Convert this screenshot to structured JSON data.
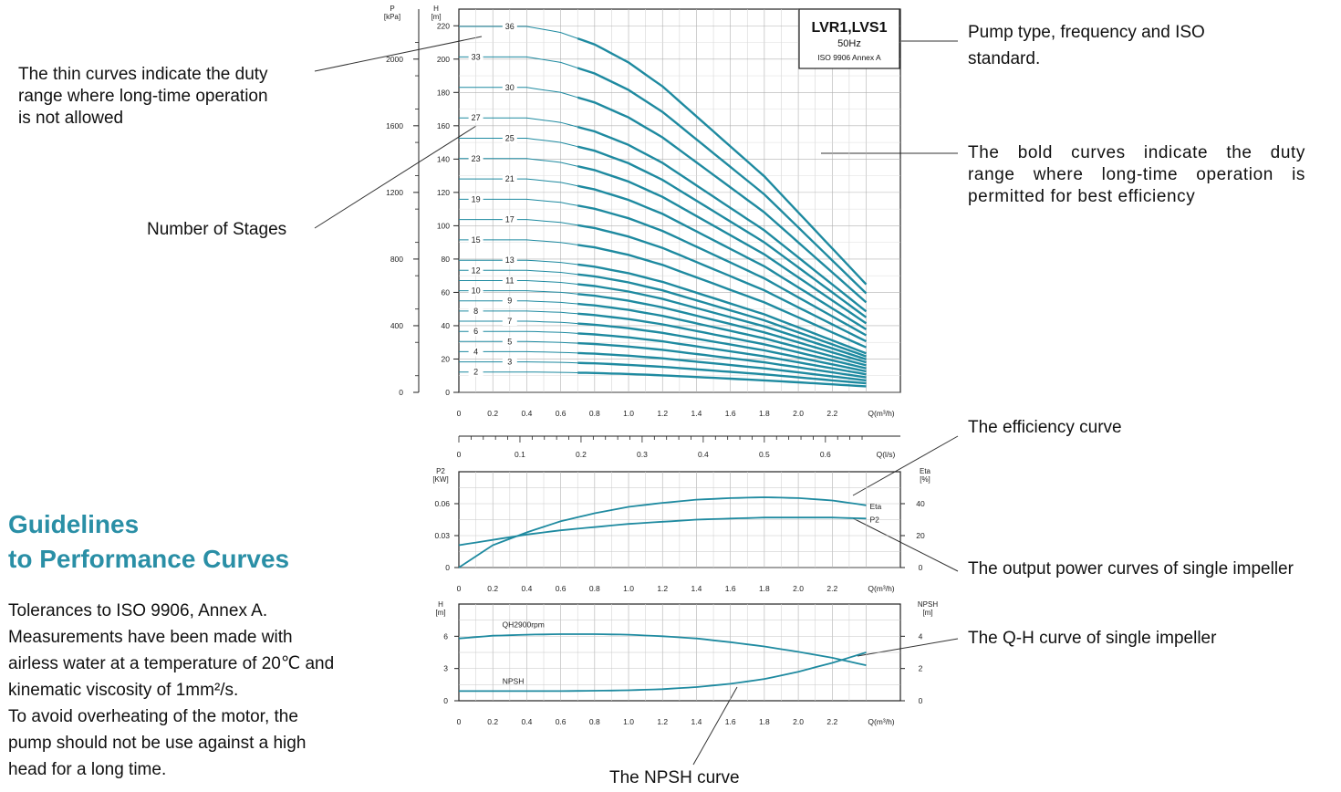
{
  "annotations": {
    "thin_curves": [
      "The thin curves indicate the duty",
      "range where long-time operation",
      "is not allowed"
    ],
    "stages": "Number of Stages",
    "pump_type": [
      "Pump type, frequency and ISO",
      "standard."
    ],
    "bold_curves": [
      "The bold curves indicate the duty",
      "range where long-time operation is",
      "permitted for best efficiency"
    ],
    "efficiency": "The efficiency curve",
    "output_power": "The output power curves of single impeller",
    "qh": "The Q-H curve of single impeller",
    "npsh": "The NPSH curve"
  },
  "guidelines": {
    "title": [
      "Guidelines",
      "to Performance Curves"
    ],
    "body": [
      "Tolerances to ISO 9906, Annex A.",
      "Measurements have been made with",
      "airless water at a temperature of 20℃  and",
      "kinematic viscosity of 1mm²/s.",
      "To avoid overheating of the motor, the",
      "pump should not be use against a high",
      "head for a long time."
    ]
  },
  "legend_box": {
    "model": "LVR1,LVS1",
    "frequency": "50Hz",
    "standard": "ISO 9906 Annex A"
  },
  "colors": {
    "curve": "#1e8aa0",
    "grid": "#b8b8b8",
    "frame": "#222222",
    "title": "#2a8fa6"
  },
  "chart_data": [
    {
      "type": "line",
      "ylabel": "H\n[m]",
      "ylabel_secondary": "P\n[kPa]",
      "xlabel": "Q(m³/h)",
      "xlim": [
        0,
        2.4
      ],
      "ylim": [
        0,
        230
      ],
      "ylim_secondary": [
        0,
        2300
      ],
      "x_ticks": [
        "0",
        "0.2",
        "0.4",
        "0.6",
        "0.8",
        "1.0",
        "1.2",
        "1.4",
        "1.6",
        "1.8",
        "2.0",
        "2.2",
        "Q(m³/h)"
      ],
      "y_ticks": [
        "0",
        "20",
        "40",
        "60",
        "80",
        "100",
        "120",
        "140",
        "160",
        "180",
        "200",
        "220"
      ],
      "y_ticks_secondary": [
        "0",
        "400",
        "800",
        "1200",
        "1600",
        "2000"
      ],
      "grid": true,
      "head_per_stage": [
        6.1,
        6.1,
        6.1,
        6.0,
        5.8,
        5.5,
        5.1,
        4.6,
        4.1,
        3.6,
        3.0,
        2.4,
        1.8
      ],
      "stages": [
        2,
        3,
        4,
        5,
        6,
        7,
        8,
        9,
        10,
        11,
        12,
        13,
        15,
        17,
        19,
        21,
        23,
        25,
        27,
        30,
        33,
        36
      ],
      "label_q": [
        0.1,
        0.3,
        0.1,
        0.3,
        0.1,
        0.3,
        0.1,
        0.3,
        0.1,
        0.3,
        0.1,
        0.3,
        0.1,
        0.3,
        0.1,
        0.3,
        0.1,
        0.3,
        0.1,
        0.3,
        0.1,
        0.3
      ],
      "bold_range": [
        0.7,
        2.4
      ]
    },
    {
      "type": "line",
      "xlim_secondary": [
        0,
        0.67
      ],
      "x_ticks_secondary": [
        "0",
        "0.1",
        "0.2",
        "0.3",
        "0.4",
        "0.5",
        "0.6",
        "Q(l/s)"
      ],
      "xlim": [
        0,
        2.4
      ],
      "x_ticks": [
        "0",
        "0.2",
        "0.4",
        "0.6",
        "0.8",
        "1.0",
        "1.2",
        "1.4",
        "1.6",
        "1.8",
        "2.0",
        "2.2",
        "Q(m³/h)"
      ],
      "ylabel": "P2\n[KW]",
      "ylabel_secondary": "Eta\n[%]",
      "ylim": [
        0,
        0.09
      ],
      "ylim_secondary": [
        0,
        60
      ],
      "y_ticks": [
        "0",
        "0.03",
        "0.06"
      ],
      "y_ticks_secondary": [
        "0",
        "20",
        "40"
      ],
      "grid": true,
      "x": [
        0,
        0.2,
        0.4,
        0.6,
        0.8,
        1.0,
        1.2,
        1.4,
        1.6,
        1.8,
        2.0,
        2.2,
        2.4
      ],
      "series": [
        {
          "name": "Eta",
          "axis": "secondary",
          "values": [
            0,
            14,
            22,
            29,
            34,
            38,
            40.5,
            42.5,
            43.5,
            44,
            43.5,
            42,
            39
          ]
        },
        {
          "name": "P2",
          "axis": "primary",
          "values": [
            0.021,
            0.026,
            0.031,
            0.035,
            0.038,
            0.041,
            0.043,
            0.045,
            0.046,
            0.047,
            0.047,
            0.047,
            0.046
          ]
        }
      ]
    },
    {
      "type": "line",
      "xlim": [
        0,
        2.4
      ],
      "x_ticks": [
        "0",
        "0.2",
        "0.4",
        "0.6",
        "0.8",
        "1.0",
        "1.2",
        "1.4",
        "1.6",
        "1.8",
        "2.0",
        "2.2",
        "Q(m³/h)"
      ],
      "ylabel": "H\n[m]",
      "ylabel_secondary": "NPSH\n[m]",
      "ylim": [
        0,
        9
      ],
      "ylim_secondary": [
        0,
        6
      ],
      "y_ticks": [
        "0",
        "3",
        "6"
      ],
      "y_ticks_secondary": [
        "0",
        "2",
        "4"
      ],
      "grid": true,
      "x": [
        0,
        0.2,
        0.4,
        0.6,
        0.8,
        1.0,
        1.2,
        1.4,
        1.6,
        1.8,
        2.0,
        2.2,
        2.4
      ],
      "series": [
        {
          "name": "QH2900rpm",
          "axis": "primary",
          "values": [
            5.8,
            6.05,
            6.15,
            6.2,
            6.2,
            6.15,
            6.0,
            5.8,
            5.45,
            5.05,
            4.55,
            4.0,
            3.3
          ]
        },
        {
          "name": "NPSH",
          "axis": "secondary",
          "values": [
            0.6,
            0.6,
            0.6,
            0.6,
            0.62,
            0.65,
            0.72,
            0.85,
            1.05,
            1.35,
            1.8,
            2.35,
            3.0
          ]
        }
      ]
    }
  ]
}
